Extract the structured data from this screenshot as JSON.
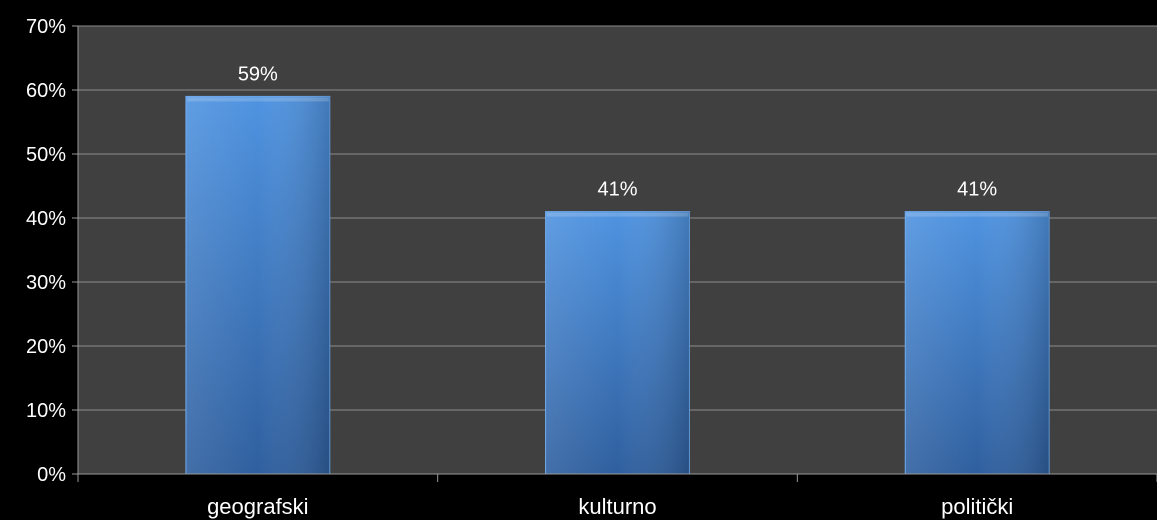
{
  "chart_data": {
    "type": "bar",
    "title": "",
    "xlabel": "",
    "ylabel": "",
    "categories": [
      "geografski",
      "kulturno",
      "politički"
    ],
    "values": [
      59,
      41,
      41
    ],
    "value_labels": [
      "59%",
      "41%",
      "41%"
    ],
    "ylim": [
      0,
      70
    ],
    "ytick_values": [
      0,
      10,
      20,
      30,
      40,
      50,
      60,
      70
    ],
    "ytick_labels": [
      "0%",
      "10%",
      "20%",
      "30%",
      "40%",
      "50%",
      "60%",
      "70%"
    ],
    "grid": true,
    "legend": "none",
    "colors": {
      "page_background": "#000000",
      "plot_background": "#404040",
      "gridline": "#8c8c8c",
      "axis": "#9a9a9a",
      "bar_top": "#4f93e0",
      "bar_bottom": "#2f5f9e",
      "bar_edge": "#6aa6ea",
      "text": "#ffffff"
    }
  }
}
